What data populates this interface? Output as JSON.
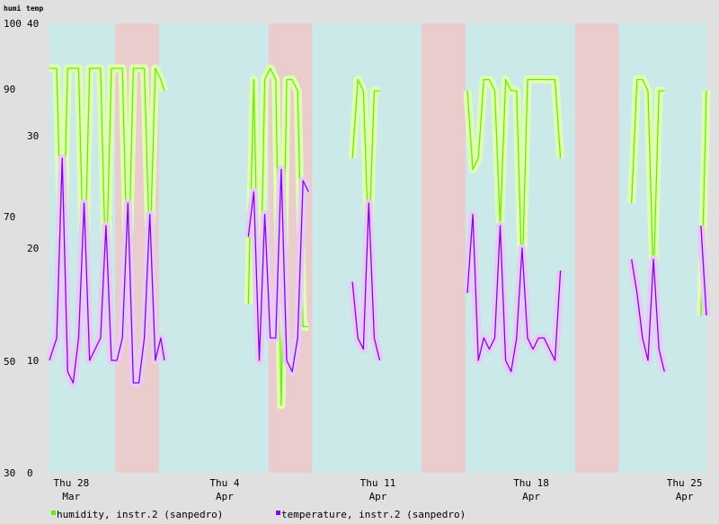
{
  "chart_data": {
    "type": "line",
    "axis_units": {
      "left": "humi",
      "right": "temp"
    },
    "y_left": {
      "ticks": [
        30,
        50,
        70,
        90,
        100
      ],
      "scale": "nonlinear"
    },
    "y_right": {
      "ticks": [
        0,
        10,
        20,
        30,
        40
      ],
      "ylim": [
        0,
        40
      ]
    },
    "x": {
      "start": "2024-03-27",
      "end": "2024-04-26",
      "ticks": [
        {
          "date": "2024-03-28",
          "day": "Thu 28",
          "month": "Mar"
        },
        {
          "date": "2024-04-04",
          "day": "Thu 4",
          "month": "Apr"
        },
        {
          "date": "2024-04-11",
          "day": "Thu 11",
          "month": "Apr"
        },
        {
          "date": "2024-04-18",
          "day": "Thu 18",
          "month": "Apr"
        },
        {
          "date": "2024-04-25",
          "day": "Thu 25",
          "month": "Apr"
        }
      ]
    },
    "weekend_bands": [
      [
        "2024-03-30",
        "2024-04-01"
      ],
      [
        "2024-04-06",
        "2024-04-08"
      ],
      [
        "2024-04-13",
        "2024-04-15"
      ],
      [
        "2024-04-20",
        "2024-04-22"
      ]
    ],
    "colors": {
      "weekday": "#cce9ea",
      "weekend": "#ebcccc",
      "humidity": "#66ee00",
      "humidity_band": "#e0ffb0",
      "temperature": "#8800ee",
      "temperature_band": "#e6ccf6"
    },
    "series": [
      {
        "name": "humidity, instr.2 (sanpedro)",
        "axis": "temp",
        "points": [
          [
            "2024-03-27",
            36
          ],
          [
            "2024-03-27T08",
            36
          ],
          [
            "2024-03-27T14",
            17
          ],
          [
            "2024-03-27T20",
            36
          ],
          [
            "2024-03-28T02",
            36
          ],
          [
            "2024-03-28T08",
            36
          ],
          [
            "2024-03-28T14",
            16
          ],
          [
            "2024-03-28T20",
            36
          ],
          [
            "2024-03-29T02",
            36
          ],
          [
            "2024-03-29T08",
            36
          ],
          [
            "2024-03-29T14",
            17
          ],
          [
            "2024-03-29T20",
            36
          ],
          [
            "2024-03-30T02",
            36
          ],
          [
            "2024-03-30T08",
            36
          ],
          [
            "2024-03-30T14",
            16
          ],
          [
            "2024-03-30T20",
            36
          ],
          [
            "2024-03-31T02",
            36
          ],
          [
            "2024-03-31T08",
            36
          ],
          [
            "2024-03-31T14",
            19
          ],
          [
            "2024-03-31T20",
            36
          ],
          [
            "2024-04-01T02",
            35
          ],
          [
            "2024-04-01T06",
            34
          ],
          [
            "2024-04-05T02",
            15
          ],
          [
            "2024-04-05T08",
            35
          ],
          [
            "2024-04-05T14",
            10
          ],
          [
            "2024-04-05T20",
            35
          ],
          [
            "2024-04-06T02",
            36
          ],
          [
            "2024-04-06T08",
            35
          ],
          [
            "2024-04-06T14",
            6
          ],
          [
            "2024-04-06T20",
            35
          ],
          [
            "2024-04-07T02",
            35
          ],
          [
            "2024-04-07T08",
            34
          ],
          [
            "2024-04-07T14",
            13
          ],
          [
            "2024-04-07T20",
            13
          ],
          [
            "2024-04-09T20",
            28
          ],
          [
            "2024-04-10T02",
            35
          ],
          [
            "2024-04-10T08",
            34
          ],
          [
            "2024-04-10T14",
            20
          ],
          [
            "2024-04-10T20",
            34
          ],
          [
            "2024-04-11T02",
            34
          ],
          [
            "2024-04-15T02",
            34
          ],
          [
            "2024-04-15T08",
            27
          ],
          [
            "2024-04-15T14",
            28
          ],
          [
            "2024-04-15T20",
            35
          ],
          [
            "2024-04-16T02",
            35
          ],
          [
            "2024-04-16T08",
            34
          ],
          [
            "2024-04-16T14",
            22
          ],
          [
            "2024-04-16T20",
            35
          ],
          [
            "2024-04-17T02",
            34
          ],
          [
            "2024-04-17T08",
            34
          ],
          [
            "2024-04-17T14",
            17
          ],
          [
            "2024-04-17T20",
            35
          ],
          [
            "2024-04-18T02",
            35
          ],
          [
            "2024-04-18T08",
            35
          ],
          [
            "2024-04-18T14",
            35
          ],
          [
            "2024-04-18T20",
            35
          ],
          [
            "2024-04-19T02",
            35
          ],
          [
            "2024-04-19T08",
            28
          ],
          [
            "2024-04-22T14",
            24
          ],
          [
            "2024-04-22T20",
            35
          ],
          [
            "2024-04-23T02",
            35
          ],
          [
            "2024-04-23T08",
            34
          ],
          [
            "2024-04-23T14",
            17
          ],
          [
            "2024-04-23T20",
            34
          ],
          [
            "2024-04-24T02",
            34
          ],
          [
            "2024-04-25T18",
            14
          ],
          [
            "2024-04-26T00",
            34
          ]
        ]
      },
      {
        "name": "temperature, instr.2 (sanpedro)",
        "axis": "temp",
        "points": [
          [
            "2024-03-27",
            10
          ],
          [
            "2024-03-27T08",
            12
          ],
          [
            "2024-03-27T14",
            28
          ],
          [
            "2024-03-27T20",
            9
          ],
          [
            "2024-03-28T02",
            8
          ],
          [
            "2024-03-28T08",
            12
          ],
          [
            "2024-03-28T14",
            24
          ],
          [
            "2024-03-28T20",
            10
          ],
          [
            "2024-03-29T02",
            11
          ],
          [
            "2024-03-29T08",
            12
          ],
          [
            "2024-03-29T14",
            22
          ],
          [
            "2024-03-29T20",
            10
          ],
          [
            "2024-03-30T02",
            10
          ],
          [
            "2024-03-30T08",
            12
          ],
          [
            "2024-03-30T14",
            24
          ],
          [
            "2024-03-30T20",
            8
          ],
          [
            "2024-03-31T02",
            8
          ],
          [
            "2024-03-31T08",
            12
          ],
          [
            "2024-03-31T14",
            23
          ],
          [
            "2024-03-31T20",
            10
          ],
          [
            "2024-04-01T02",
            12
          ],
          [
            "2024-04-01T06",
            10
          ],
          [
            "2024-04-05T02",
            21
          ],
          [
            "2024-04-05T08",
            25
          ],
          [
            "2024-04-05T14",
            10
          ],
          [
            "2024-04-05T20",
            23
          ],
          [
            "2024-04-06T02",
            12
          ],
          [
            "2024-04-06T08",
            12
          ],
          [
            "2024-04-06T14",
            27
          ],
          [
            "2024-04-06T20",
            10
          ],
          [
            "2024-04-07T02",
            9
          ],
          [
            "2024-04-07T08",
            12
          ],
          [
            "2024-04-07T14",
            26
          ],
          [
            "2024-04-07T20",
            25
          ],
          [
            "2024-04-09T20",
            17
          ],
          [
            "2024-04-10T02",
            12
          ],
          [
            "2024-04-10T08",
            11
          ],
          [
            "2024-04-10T14",
            24
          ],
          [
            "2024-04-10T20",
            12
          ],
          [
            "2024-04-11T02",
            10
          ],
          [
            "2024-04-15T02",
            16
          ],
          [
            "2024-04-15T08",
            23
          ],
          [
            "2024-04-15T14",
            10
          ],
          [
            "2024-04-15T20",
            12
          ],
          [
            "2024-04-16T02",
            11
          ],
          [
            "2024-04-16T08",
            12
          ],
          [
            "2024-04-16T14",
            22
          ],
          [
            "2024-04-16T20",
            10
          ],
          [
            "2024-04-17T02",
            9
          ],
          [
            "2024-04-17T08",
            12
          ],
          [
            "2024-04-17T14",
            20
          ],
          [
            "2024-04-17T20",
            12
          ],
          [
            "2024-04-18T02",
            11
          ],
          [
            "2024-04-18T08",
            12
          ],
          [
            "2024-04-18T14",
            12
          ],
          [
            "2024-04-18T20",
            11
          ],
          [
            "2024-04-19T02",
            10
          ],
          [
            "2024-04-19T08",
            18
          ],
          [
            "2024-04-22T14",
            19
          ],
          [
            "2024-04-22T20",
            16
          ],
          [
            "2024-04-23T02",
            12
          ],
          [
            "2024-04-23T08",
            10
          ],
          [
            "2024-04-23T14",
            19
          ],
          [
            "2024-04-23T20",
            11
          ],
          [
            "2024-04-24T02",
            9
          ],
          [
            "2024-04-25T18",
            22
          ],
          [
            "2024-04-26T00",
            14
          ]
        ]
      }
    ],
    "grid": false,
    "legend_position": "bottom"
  }
}
